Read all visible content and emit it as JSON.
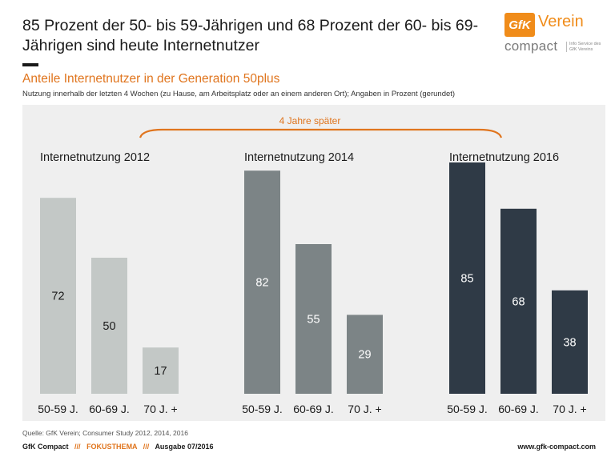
{
  "headline": "85 Prozent der 50- bis 59-Jährigen und 68 Prozent der 60- bis 69-Jährigen sind heute Internetnutzer",
  "logo": {
    "mark": "GfK",
    "word": "Verein",
    "compact": "compact",
    "sub": "Info Service des GfK Vereins"
  },
  "subtitle": "Anteile Internetnutzer  in der Generation 50plus",
  "note": "Nutzung innerhalb der letzten 4 Wochen (zu Hause, am Arbeitsplatz oder an einem anderen Ort); Angaben in Prozent (gerundet)",
  "source": "Quelle: GfK Verein; Consumer Study 2012, 2014, 2016",
  "footer": {
    "brand": "GfK Compact",
    "sep": "///",
    "topic": "FOKUSTHEMA",
    "issue": "Ausgabe 07/2016",
    "url": "www.gfk-compact.com"
  },
  "chart_data": {
    "type": "bar",
    "annotation": "4 Jahre später",
    "categories": [
      "50-59 J.",
      "60-69 J.",
      "70 J. +"
    ],
    "series": [
      {
        "name": "Internetnutzung 2012",
        "values": [
          72,
          50,
          17
        ],
        "color": "#c3c8c6",
        "label_color": "#1a1a1a"
      },
      {
        "name": "Internetnutzung 2014",
        "values": [
          82,
          55,
          29
        ],
        "color": "#7c8486",
        "label_color": "#ffffff"
      },
      {
        "name": "Internetnutzung 2016",
        "values": [
          85,
          68,
          38
        ],
        "color": "#2f3a46",
        "label_color": "#ffffff"
      }
    ],
    "ylim": [
      0,
      100
    ]
  }
}
